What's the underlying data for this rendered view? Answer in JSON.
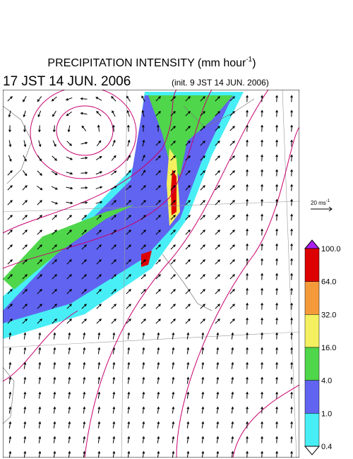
{
  "header": {
    "title": {
      "text": "PRECIPITATION INTENSITY (mm hour",
      "sup": "-1",
      "end": ")"
    },
    "valid_time": "17 JST 14 JUN. 2006",
    "init_time": "(init. 9 JST 14 JUN. 2006)"
  },
  "vector_key": {
    "text": "20 ms",
    "sup": "-1"
  },
  "colorbar": {
    "labels": [
      "100.0",
      "64.0",
      "32.0",
      "16.0",
      "4.0",
      "1.0",
      "0.4"
    ],
    "colors": [
      "#dd0000",
      "#f59a3a",
      "#f5f060",
      "#4fd64a",
      "#6064f0",
      "#48eef5"
    ],
    "over_color": "#aa22ee",
    "under_color": "#ffffff"
  }
}
